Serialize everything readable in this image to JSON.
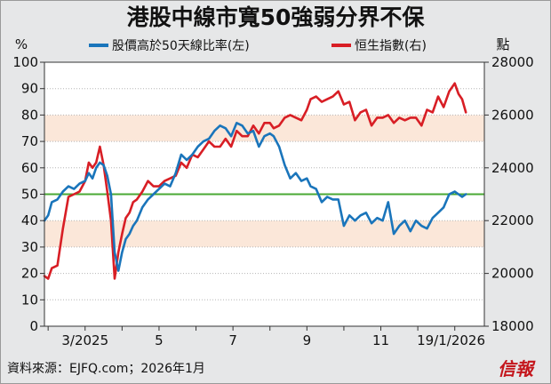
{
  "chart_data": {
    "type": "line",
    "title": "港股中線市寬50強弱分界不保",
    "left_unit": "%",
    "right_unit": "點",
    "yleft_lim": [
      0,
      100
    ],
    "yright_lim": [
      18000,
      28000
    ],
    "yleft_ticks": [
      "0",
      "10",
      "20",
      "30",
      "40",
      "50",
      "60",
      "70",
      "80",
      "90",
      "100"
    ],
    "yright_ticks": [
      "18000",
      "20000",
      "22000",
      "24000",
      "26000",
      "28000"
    ],
    "x_tick_labels": [
      {
        "label": "3/2025",
        "x": 2
      },
      {
        "label": "5",
        "x": 4
      },
      {
        "label": "7",
        "x": 6
      },
      {
        "label": "9",
        "x": 8
      },
      {
        "label": "11",
        "x": 10
      },
      {
        "label": "19/1/2026",
        "x": 11.9
      }
    ],
    "xlim": [
      0.9,
      12.8
    ],
    "reference_line": {
      "value": 50,
      "color": "#4aa834"
    },
    "shaded_bands": [
      [
        30,
        40
      ],
      [
        70,
        80
      ]
    ],
    "legend_position": "top",
    "series": [
      {
        "name": "股價高於50天線比率(左)",
        "axis": "left",
        "color": "#1a75bb",
        "x": [
          0.9,
          1.0,
          1.1,
          1.25,
          1.4,
          1.55,
          1.7,
          1.85,
          2.0,
          2.1,
          2.2,
          2.3,
          2.4,
          2.5,
          2.6,
          2.7,
          2.8,
          2.9,
          3.0,
          3.1,
          3.2,
          3.3,
          3.4,
          3.55,
          3.7,
          3.85,
          4.0,
          4.15,
          4.3,
          4.45,
          4.6,
          4.75,
          4.9,
          5.05,
          5.2,
          5.35,
          5.5,
          5.65,
          5.8,
          5.95,
          6.1,
          6.25,
          6.4,
          6.55,
          6.7,
          6.85,
          7.0,
          7.1,
          7.25,
          7.4,
          7.55,
          7.7,
          7.85,
          8.0,
          8.1,
          8.25,
          8.4,
          8.55,
          8.7,
          8.85,
          9.0,
          9.15,
          9.3,
          9.45,
          9.6,
          9.75,
          9.9,
          10.05,
          10.2,
          10.35,
          10.5,
          10.65,
          10.8,
          10.95,
          11.1,
          11.25,
          11.4,
          11.55,
          11.7,
          11.85,
          12.0,
          12.1,
          12.2,
          12.3
        ],
        "values": [
          40,
          42,
          47,
          48,
          51,
          53,
          52,
          54,
          55,
          58,
          56,
          60,
          62,
          61,
          57,
          50,
          28,
          21,
          28,
          33,
          35,
          38,
          40,
          45,
          48,
          50,
          52,
          54,
          53,
          58,
          65,
          63,
          65,
          68,
          70,
          71,
          74,
          76,
          75,
          72,
          77,
          76,
          73,
          74,
          68,
          72,
          73,
          72,
          68,
          61,
          56,
          58,
          55,
          56,
          53,
          52,
          47,
          49,
          48,
          48,
          38,
          42,
          40,
          42,
          43,
          39,
          41,
          40,
          47,
          35,
          38,
          40,
          36,
          40,
          38,
          37,
          41,
          43,
          45,
          50,
          51,
          50,
          49,
          50
        ]
      },
      {
        "name": "恒生指數(右)",
        "axis": "right",
        "color": "#d81e25",
        "x": [
          0.9,
          1.0,
          1.1,
          1.25,
          1.4,
          1.55,
          1.7,
          1.85,
          2.0,
          2.1,
          2.2,
          2.3,
          2.4,
          2.5,
          2.6,
          2.7,
          2.8,
          2.9,
          3.0,
          3.1,
          3.2,
          3.3,
          3.4,
          3.55,
          3.7,
          3.85,
          4.0,
          4.15,
          4.3,
          4.45,
          4.6,
          4.75,
          4.9,
          5.05,
          5.2,
          5.35,
          5.5,
          5.65,
          5.8,
          5.95,
          6.1,
          6.25,
          6.4,
          6.55,
          6.7,
          6.85,
          7.0,
          7.1,
          7.25,
          7.4,
          7.55,
          7.7,
          7.85,
          8.0,
          8.1,
          8.25,
          8.4,
          8.55,
          8.7,
          8.85,
          9.0,
          9.15,
          9.3,
          9.45,
          9.6,
          9.75,
          9.9,
          10.05,
          10.2,
          10.35,
          10.5,
          10.65,
          10.8,
          10.95,
          11.1,
          11.25,
          11.4,
          11.55,
          11.7,
          11.85,
          12.0,
          12.1,
          12.2,
          12.3
        ],
        "values": [
          19900,
          19800,
          20200,
          20300,
          21700,
          22900,
          23000,
          23100,
          23500,
          24200,
          24000,
          24200,
          24800,
          24100,
          23100,
          22000,
          19800,
          20800,
          21500,
          22100,
          22300,
          22700,
          22800,
          23100,
          23500,
          23300,
          23300,
          23500,
          23600,
          23700,
          24200,
          24000,
          24500,
          24400,
          24700,
          25000,
          24800,
          24800,
          25100,
          24800,
          25400,
          25200,
          25200,
          25600,
          25300,
          25700,
          25700,
          25500,
          25600,
          25900,
          26000,
          25900,
          25800,
          26200,
          26600,
          26700,
          26500,
          26600,
          26700,
          26900,
          26400,
          26500,
          25800,
          26100,
          26200,
          25600,
          25900,
          25900,
          26000,
          25700,
          25900,
          25800,
          25900,
          25900,
          25600,
          26200,
          26100,
          26700,
          26300,
          26900,
          27200,
          26800,
          26600,
          26100
        ]
      }
    ]
  },
  "source_note": "資料來源：EJFQ.com；2026年1月",
  "logo_text": "信報"
}
